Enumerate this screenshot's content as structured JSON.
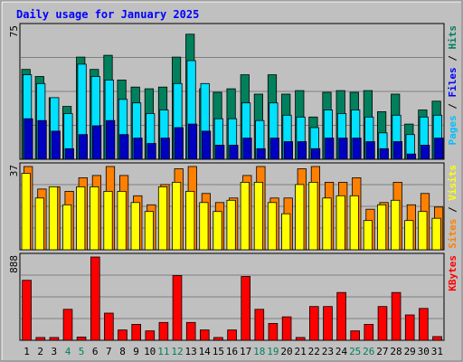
{
  "chart_data": {
    "type": "bar",
    "title": "Daily usage for January 2025",
    "categories": [
      "1",
      "2",
      "3",
      "4",
      "5",
      "6",
      "7",
      "8",
      "9",
      "10",
      "11",
      "12",
      "13",
      "14",
      "15",
      "16",
      "17",
      "18",
      "19",
      "20",
      "21",
      "22",
      "23",
      "24",
      "25",
      "26",
      "27",
      "28",
      "29",
      "30",
      "31"
    ],
    "weekend_days": [
      "4",
      "5",
      "11",
      "12",
      "18",
      "19",
      "25",
      "26"
    ],
    "panels": [
      {
        "name": "hits-files-pages",
        "max_label": "75",
        "ymax": 75,
        "side_label": {
          "parts": [
            "Pages",
            " / ",
            "Files",
            " / ",
            "Hits"
          ]
        },
        "series": [
          {
            "name": "Hits",
            "color": "#00805c",
            "values": [
              51,
              47,
              35,
              30,
              58,
              51,
              59,
              45,
              41,
              40,
              41,
              58,
              71,
              40,
              38,
              40,
              48,
              37,
              48,
              37,
              39,
              24,
              38,
              39,
              38,
              39,
              27,
              37,
              20,
              28,
              33
            ]
          },
          {
            "name": "Files",
            "color": "#00e0ff",
            "values": [
              48,
              43,
              35,
              26,
              54,
              47,
              45,
              34,
              32,
              26,
              28,
              43,
              56,
              43,
              23,
              23,
              32,
              22,
              32,
              25,
              24,
              18,
              28,
              26,
              28,
              24,
              15,
              25,
              14,
              24,
              25
            ]
          },
          {
            "name": "Pages",
            "color": "#0000c0",
            "values": [
              23,
              22,
              16,
              6,
              14,
              19,
              22,
              14,
              12,
              9,
              12,
              18,
              20,
              16,
              8,
              8,
              12,
              6,
              12,
              10,
              10,
              6,
              12,
              12,
              12,
              10,
              6,
              10,
              3,
              8,
              12
            ]
          }
        ]
      },
      {
        "name": "visits-sites",
        "max_label": "37",
        "ymax": 37,
        "side_label": {
          "parts": [
            "Sites",
            " / ",
            "Visits"
          ]
        },
        "series": [
          {
            "name": "Visits",
            "color": "#ff8000",
            "values": [
              37,
              27,
              28,
              26,
              32,
              33,
              37,
              33,
              24,
              20,
              29,
              36,
              37,
              25,
              21,
              23,
              33,
              37,
              23,
              23,
              36,
              37,
              30,
              30,
              32,
              18,
              21,
              30,
              20,
              25,
              19
            ]
          },
          {
            "name": "Sites",
            "color": "#ffff00",
            "values": [
              34,
              23,
              28,
              20,
              28,
              28,
              26,
              26,
              21,
              17,
              28,
              30,
              26,
              21,
              17,
              22,
              30,
              30,
              21,
              16,
              29,
              30,
              23,
              24,
              24,
              13,
              20,
              22,
              13,
              17,
              14
            ]
          }
        ]
      },
      {
        "name": "kbytes",
        "max_label": "888",
        "ymax": 888,
        "side_label": {
          "parts": [
            "KBytes"
          ]
        },
        "series": [
          {
            "name": "KBytes",
            "color": "#ff0000",
            "values": [
              640,
              30,
              30,
              330,
              35,
              888,
              290,
              110,
              170,
              100,
              190,
              690,
              190,
              110,
              30,
              110,
              680,
              330,
              180,
              250,
              30,
              360,
              360,
              510,
              100,
              170,
              360,
              510,
              270,
              340,
              40
            ]
          }
        ]
      }
    ]
  }
}
